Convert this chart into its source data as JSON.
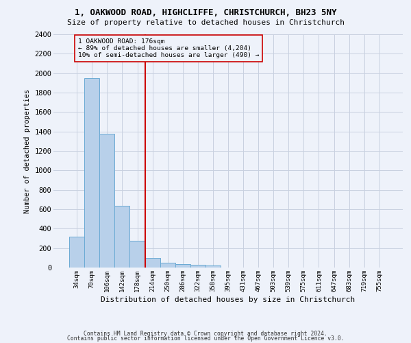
{
  "title": "1, OAKWOOD ROAD, HIGHCLIFFE, CHRISTCHURCH, BH23 5NY",
  "subtitle": "Size of property relative to detached houses in Christchurch",
  "xlabel": "Distribution of detached houses by size in Christchurch",
  "ylabel": "Number of detached properties",
  "footnote1": "Contains HM Land Registry data © Crown copyright and database right 2024.",
  "footnote2": "Contains public sector information licensed under the Open Government Licence v3.0.",
  "bar_labels": [
    "34sqm",
    "70sqm",
    "106sqm",
    "142sqm",
    "178sqm",
    "214sqm",
    "250sqm",
    "286sqm",
    "322sqm",
    "358sqm",
    "395sqm",
    "431sqm",
    "467sqm",
    "503sqm",
    "539sqm",
    "575sqm",
    "611sqm",
    "647sqm",
    "683sqm",
    "719sqm",
    "755sqm"
  ],
  "bar_values": [
    315,
    1950,
    1380,
    635,
    275,
    100,
    48,
    32,
    25,
    20,
    0,
    0,
    0,
    0,
    0,
    0,
    0,
    0,
    0,
    0,
    0
  ],
  "bar_color": "#b8d0ea",
  "bar_edge_color": "#6aaad4",
  "vline_x_index": 4,
  "vline_color": "#cc0000",
  "annotation_text_line1": "1 OAKWOOD ROAD: 176sqm",
  "annotation_text_line2": "← 89% of detached houses are smaller (4,204)",
  "annotation_text_line3": "10% of semi-detached houses are larger (490) →",
  "ylim": [
    0,
    2400
  ],
  "yticks": [
    0,
    200,
    400,
    600,
    800,
    1000,
    1200,
    1400,
    1600,
    1800,
    2000,
    2200,
    2400
  ],
  "background_color": "#eef2fa",
  "grid_color": "#c8d0e0"
}
